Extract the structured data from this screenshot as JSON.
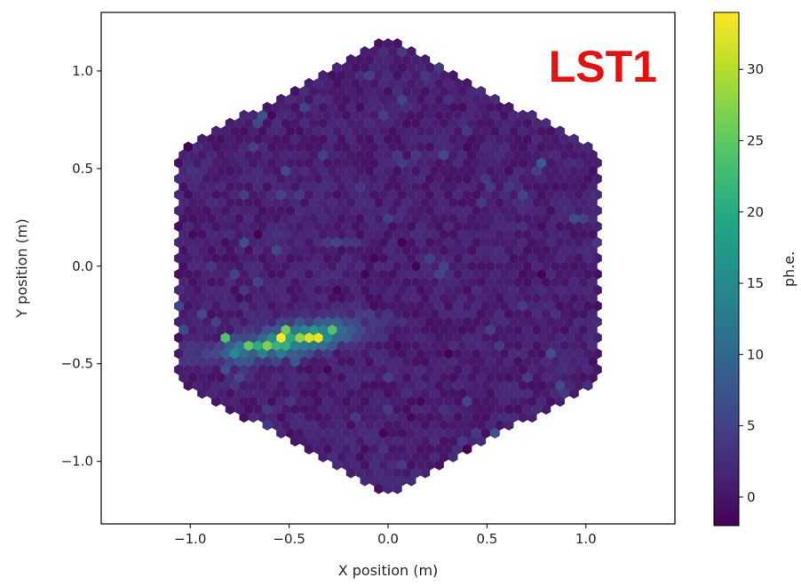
{
  "chart_data": {
    "type": "heatmap",
    "subtype": "hexagonal-camera-image",
    "annotation": "LST1",
    "xlabel": "X position (m)",
    "ylabel": "Y position (m)",
    "xlim": [
      -1.45,
      1.45
    ],
    "ylim": [
      -1.32,
      1.3
    ],
    "xticks": [
      -1.0,
      -0.5,
      0.0,
      0.5,
      1.0
    ],
    "xtick_labels": [
      "−1.0",
      "−0.5",
      "0.0",
      "0.5",
      "1.0"
    ],
    "yticks": [
      -1.0,
      -0.5,
      0.0,
      0.5,
      1.0
    ],
    "ytick_labels": [
      "−1.0",
      "−0.5",
      "0.0",
      "0.5",
      "1.0"
    ],
    "grid": false,
    "camera_outline": "hexagon",
    "camera_half_width_m": 1.08,
    "camera_half_height_m": 1.17,
    "colormap": "viridis",
    "colorbar": {
      "label": "ph.e.",
      "range": [
        -2,
        34
      ],
      "ticks": [
        0,
        5,
        10,
        15,
        20,
        25,
        30
      ],
      "tick_labels": [
        "0",
        "5",
        "10",
        "15",
        "20",
        "25",
        "30"
      ]
    },
    "background_level": 1,
    "signal_region": {
      "shape": "elongated-ellipse",
      "center": [
        -0.5,
        -0.38
      ],
      "length_m": 0.44,
      "width_m": 0.05,
      "tilt_deg": 11,
      "peak_level": 20
    },
    "hotspots": [
      {
        "x": -0.55,
        "y": -0.37,
        "value": 34
      },
      {
        "x": -0.38,
        "y": -0.36,
        "value": 32
      },
      {
        "x": -0.33,
        "y": -0.37,
        "value": 33
      },
      {
        "x": -0.45,
        "y": -0.39,
        "value": 28
      },
      {
        "x": -0.62,
        "y": -0.39,
        "value": 27
      },
      {
        "x": -0.7,
        "y": -0.4,
        "value": 25
      },
      {
        "x": -0.28,
        "y": -0.34,
        "value": 24
      },
      {
        "x": -0.8,
        "y": -0.37,
        "value": 24
      },
      {
        "x": -0.52,
        "y": -0.35,
        "value": 26
      }
    ],
    "other_spots": [
      {
        "x": 0.77,
        "y": 0.55,
        "value": 8
      },
      {
        "x": 0.38,
        "y": -0.68,
        "value": 6
      },
      {
        "x": -0.28,
        "y": 0.12,
        "value": 5
      },
      {
        "x": 0.22,
        "y": 0.05,
        "value": 5
      },
      {
        "x": 0.25,
        "y": -0.05,
        "value": 5
      },
      {
        "x": -0.75,
        "y": -0.55,
        "value": 6
      },
      {
        "x": 0.48,
        "y": 0.31,
        "value": 4
      },
      {
        "x": -0.18,
        "y": -0.78,
        "value": 4
      }
    ]
  }
}
